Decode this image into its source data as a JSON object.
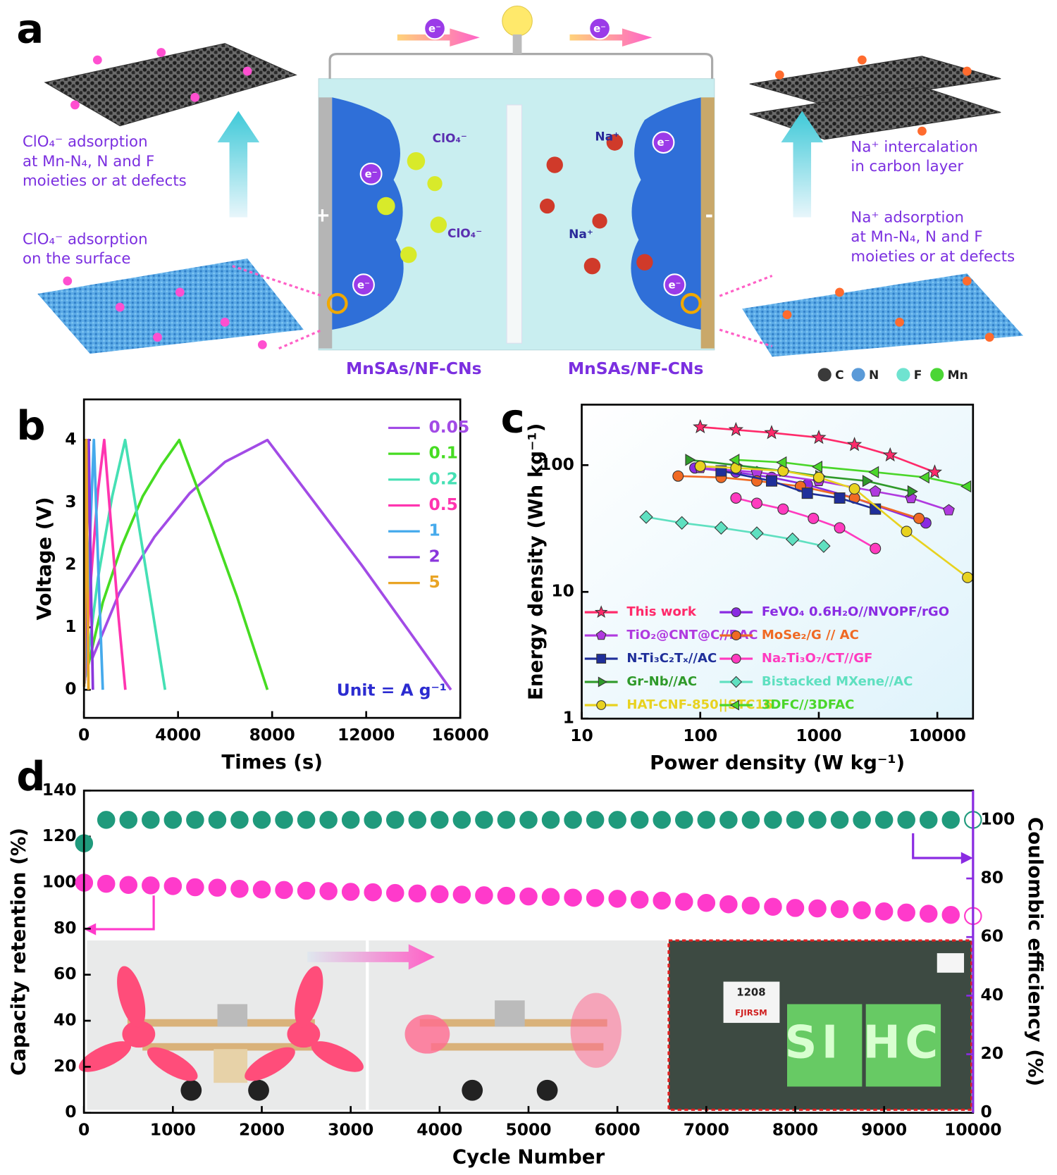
{
  "panels": [
    "a",
    "b",
    "c",
    "d"
  ],
  "diagram": {
    "left_top": [
      "ClO₄⁻ adsorption",
      "at Mn-N₄, N and F",
      "moieties or at defects"
    ],
    "left_bottom": [
      "ClO₄⁻ adsorption",
      "on the surface"
    ],
    "right_top": [
      "Na⁺ intercalation",
      "in carbon layer"
    ],
    "right_bottom": [
      "Na⁺ adsorption",
      "at Mn-N₄, N and F",
      "moieties or at defects"
    ],
    "electrodes": [
      "MnSAs/NF-CNs",
      "MnSAs/NF-CNs"
    ],
    "ions": [
      "ClO₄⁻",
      "ClO₄⁻",
      "Na⁺",
      "Na⁺"
    ],
    "electron": "e⁻",
    "poles": [
      "+",
      "-"
    ],
    "atoms": [
      {
        "name": "C",
        "color": "#3a3a3a"
      },
      {
        "name": "N",
        "color": "#5a9ad8"
      },
      {
        "name": "F",
        "color": "#6fe3d0"
      },
      {
        "name": "Mn",
        "color": "#4bd635"
      }
    ]
  },
  "photos": {
    "timer": "1208",
    "brand": "FJIRSM",
    "display": "SI HC"
  },
  "chart_data": [
    {
      "type": "line",
      "xlabel": "Times (s)",
      "ylabel": "Voltage (V)",
      "annotation": "Unit = A g⁻¹",
      "xlim": [
        0,
        16000
      ],
      "xticks": [
        0,
        4000,
        8000,
        12000,
        16000
      ],
      "ylim": [
        -0.45,
        4.65
      ],
      "yticks": [
        0,
        1,
        2,
        3,
        4
      ],
      "series": [
        {
          "name": "0.05",
          "color": "#a24be6",
          "x": [
            350,
            1500,
            3000,
            4500,
            6000,
            7800,
            9800,
            11800,
            13800,
            15600
          ],
          "values": [
            0.5,
            1.55,
            2.45,
            3.15,
            3.65,
            4,
            3.0,
            2.0,
            0.95,
            0
          ]
        },
        {
          "name": "0.1",
          "color": "#46dc22",
          "x": [
            120,
            800,
            1600,
            2500,
            3300,
            4050,
            5300,
            6500,
            7800
          ],
          "values": [
            0.3,
            1.4,
            2.3,
            3.1,
            3.6,
            4,
            2.75,
            1.5,
            0
          ]
        },
        {
          "name": "0.2",
          "color": "#45e0b4",
          "x": [
            60,
            600,
            1200,
            1750,
            2300,
            2900,
            3450
          ],
          "values": [
            0.2,
            1.8,
            3.1,
            4,
            2.7,
            1.3,
            0
          ]
        },
        {
          "name": "0.5",
          "color": "#ff35b0",
          "x": [
            40,
            300,
            600,
            860,
            1160,
            1460,
            1760
          ],
          "values": [
            0.15,
            1.8,
            3.2,
            4,
            2.6,
            1.2,
            0
          ]
        },
        {
          "name": "1",
          "color": "#45aaec",
          "x": [
            30,
            230,
            420,
            620,
            800
          ],
          "values": [
            0.1,
            2.2,
            4,
            1.8,
            0
          ]
        },
        {
          "name": "2",
          "color": "#8a36dc",
          "x": [
            20,
            120,
            200,
            290,
            380
          ],
          "values": [
            0.1,
            2.2,
            4,
            1.8,
            0
          ]
        },
        {
          "name": "5",
          "color": "#e9a424",
          "x": [
            10,
            55,
            100,
            150,
            190
          ],
          "values": [
            0.05,
            2.2,
            4,
            1.8,
            0
          ]
        }
      ]
    },
    {
      "type": "line",
      "xlabel": "Power density (W kg⁻¹)",
      "ylabel": "Energy density (Wh kg⁻¹)",
      "log_x": true,
      "log_y": true,
      "xlim": [
        10,
        20000
      ],
      "xticks": [
        10,
        100,
        1000,
        10000
      ],
      "ylim": [
        1,
        300
      ],
      "yticks": [
        1,
        10,
        100
      ],
      "series": [
        {
          "name": "This work",
          "color": "#ff2a6a",
          "marker": "star",
          "x": [
            100,
            200,
            400,
            1000,
            2000,
            4000,
            9500
          ],
          "values": [
            200,
            190,
            180,
            165,
            145,
            120,
            88
          ]
        },
        {
          "name": "FeVO₄ 0.6H₂O//NVOPF/rGO",
          "color": "#8a2be2",
          "marker": "circle",
          "x": [
            90,
            200,
            400,
            800,
            2000,
            8000
          ],
          "values": [
            95,
            88,
            80,
            70,
            55,
            35
          ]
        },
        {
          "name": "TiO₂@CNT@C//BAC",
          "color": "#b03adf",
          "marker": "pentagon",
          "x": [
            100,
            300,
            1000,
            3000,
            6000,
            12500
          ],
          "values": [
            95,
            88,
            75,
            62,
            55,
            44
          ]
        },
        {
          "name": "MoSe₂/G // AC",
          "color": "#f06a24",
          "marker": "circle",
          "x": [
            65,
            150,
            300,
            700,
            2000,
            7000
          ],
          "values": [
            82,
            80,
            75,
            68,
            55,
            38
          ]
        },
        {
          "name": "N-Ti₃C₂Tₓ//AC",
          "color": "#1f2f9a",
          "marker": "square",
          "x": [
            150,
            400,
            800,
            1500,
            3000
          ],
          "values": [
            90,
            75,
            60,
            55,
            45
          ]
        },
        {
          "name": "Na₂Ti₃O₇/CT//GF",
          "color": "#ff3bbf",
          "marker": "circle",
          "x": [
            200,
            300,
            500,
            900,
            1500,
            3000
          ],
          "values": [
            55,
            50,
            45,
            38,
            32,
            22
          ]
        },
        {
          "name": "Gr-Nb//AC",
          "color": "#2f9a2a",
          "marker": "tri-right",
          "x": [
            80,
            200,
            500,
            1000,
            2500,
            6000
          ],
          "values": [
            110,
            100,
            90,
            82,
            75,
            62
          ]
        },
        {
          "name": "Bistacked MXene//AC",
          "color": "#5fe0c0",
          "marker": "diamond",
          "x": [
            35,
            70,
            150,
            300,
            600,
            1100
          ],
          "values": [
            39,
            35,
            32,
            29,
            26,
            23
          ]
        },
        {
          "name": "HAT-CNF-850||STC16",
          "color": "#e8d21f",
          "marker": "circle",
          "x": [
            100,
            200,
            500,
            1000,
            2000,
            5500,
            18000
          ],
          "values": [
            98,
            95,
            90,
            80,
            65,
            30,
            13
          ]
        },
        {
          "name": "3DFC//3DFAC",
          "color": "#4ad62a",
          "marker": "tri-left",
          "x": [
            200,
            500,
            1000,
            3000,
            8000,
            18000
          ],
          "values": [
            110,
            105,
            97,
            88,
            80,
            68
          ]
        }
      ]
    },
    {
      "type": "scatter",
      "xlabel": "Cycle Number",
      "ylabel": "Capacity retention (%)",
      "y2label": "Coulombic efficiency (%)",
      "xlim": [
        0,
        10000
      ],
      "xticks": [
        0,
        1000,
        2000,
        3000,
        4000,
        5000,
        6000,
        7000,
        8000,
        9000,
        10000
      ],
      "ylim": [
        0,
        140
      ],
      "yticks": [
        0,
        20,
        40,
        60,
        80,
        100,
        120,
        140
      ],
      "y2lim": [
        0,
        110
      ],
      "y2ticks": [
        0,
        20,
        40,
        60,
        80,
        100
      ],
      "y2color": "#8a2be2",
      "x": [
        1,
        250,
        500,
        750,
        1000,
        1250,
        1500,
        1750,
        2000,
        2250,
        2500,
        2750,
        3000,
        3250,
        3500,
        3750,
        4000,
        4250,
        4500,
        4750,
        5000,
        5250,
        5500,
        5750,
        6000,
        6250,
        6500,
        6750,
        7000,
        7250,
        7500,
        7750,
        8000,
        8250,
        8500,
        8750,
        9000,
        9250,
        9500,
        9750,
        10000
      ],
      "series": [
        {
          "color": "#ff3acb",
          "values": [
            100,
            99.5,
            99,
            98.8,
            98.5,
            98,
            97.8,
            97.3,
            97,
            96.8,
            96.5,
            96.3,
            96,
            95.8,
            95.5,
            95.3,
            95,
            94.8,
            94.5,
            94.3,
            94,
            93.8,
            93.5,
            93.3,
            93,
            92.6,
            92.2,
            91.7,
            91.2,
            90.6,
            90,
            89.5,
            89,
            88.8,
            88.5,
            88,
            87.5,
            87,
            86.5,
            86,
            85.5
          ]
        },
        {
          "color": "#1f9a7c",
          "axis": "y2",
          "values": [
            92,
            100,
            100,
            100,
            100,
            100,
            100,
            100,
            100,
            100,
            100,
            100,
            100,
            100,
            100,
            100,
            100,
            100,
            100,
            100,
            100,
            100,
            100,
            100,
            100,
            100,
            100,
            100,
            100,
            100,
            100,
            100,
            100,
            100,
            100,
            100,
            100,
            100,
            100,
            100,
            100
          ]
        }
      ]
    }
  ]
}
